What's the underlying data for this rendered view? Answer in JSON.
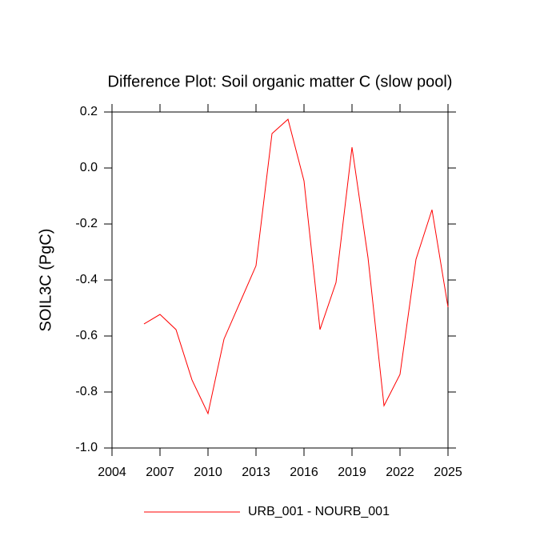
{
  "chart_data": {
    "type": "line",
    "title": "Difference Plot: Soil organic matter C (slow pool)",
    "y_label": "SOIL3C  (PgC)",
    "x": [
      2006,
      2007,
      2008,
      2009,
      2010,
      2011,
      2012,
      2013,
      2014,
      2015,
      2016,
      2017,
      2018,
      2019,
      2020,
      2021,
      2022,
      2023,
      2024,
      2025
    ],
    "series": [
      {
        "name": "URB_001 - NOURB_001",
        "color": "#ff0000",
        "values": [
          -0.557,
          -0.523,
          -0.577,
          -0.757,
          -0.877,
          -0.611,
          -0.48,
          -0.349,
          0.123,
          0.174,
          -0.046,
          -0.577,
          -0.409,
          0.074,
          -0.32,
          -0.849,
          -0.737,
          -0.326,
          -0.149,
          -0.497
        ]
      }
    ],
    "xlim": [
      2004,
      2025
    ],
    "xticks": [
      2004,
      2007,
      2010,
      2013,
      2016,
      2019,
      2022,
      2025
    ],
    "ylim": [
      -1.0,
      0.2
    ],
    "yticks": [
      {
        "value": -1.0,
        "label": "-1.0"
      },
      -0.8,
      -0.6,
      -0.4,
      -0.2,
      {
        "value": 0,
        "label": "0.0"
      },
      0.2
    ],
    "grid": false
  }
}
